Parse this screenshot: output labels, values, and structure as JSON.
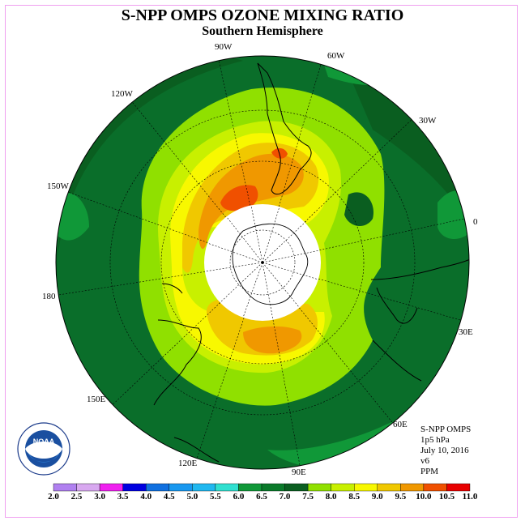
{
  "header": {
    "title": "S-NPP OMPS OZONE MIXING RATIO",
    "subtitle": "Southern Hemisphere"
  },
  "map": {
    "projection": "south polar stereographic",
    "longitude_labels": [
      "90W",
      "60W",
      "30W",
      "0",
      "30E",
      "60E",
      "90E",
      "120E",
      "150E",
      "180",
      "150W",
      "120W"
    ],
    "ocean_color": "#0a6e2a",
    "pole_mask_color": "#ffffff",
    "coastline_color": "#000000"
  },
  "info": {
    "instrument": "S-NPP OMPS",
    "level": "1p5 hPa",
    "date": "July 10, 2016",
    "version": "v6",
    "units": "PPM"
  },
  "colorbar": {
    "ticks": [
      "2.0",
      "2.5",
      "3.0",
      "3.5",
      "4.0",
      "4.5",
      "5.0",
      "5.5",
      "6.0",
      "6.5",
      "7.0",
      "7.5",
      "8.0",
      "8.5",
      "9.0",
      "9.5",
      "10.0",
      "10.5",
      "11.0"
    ],
    "colors": [
      "#b080f0",
      "#d8a8f0",
      "#f020f0",
      "#0000e0",
      "#1070e0",
      "#1898f0",
      "#20b8f0",
      "#30e0d0",
      "#109838",
      "#0a7a2a",
      "#0a5e20",
      "#90e000",
      "#c8f000",
      "#f8f800",
      "#f0c800",
      "#f09800",
      "#f05000",
      "#e80000",
      "#7a4a2a"
    ]
  },
  "logo": {
    "text": "NOAA",
    "ring_text": "NATIONAL OCEANIC AND ATMOSPHERIC ADMINISTRATION · U.S. DEPARTMENT OF COMMERCE"
  }
}
